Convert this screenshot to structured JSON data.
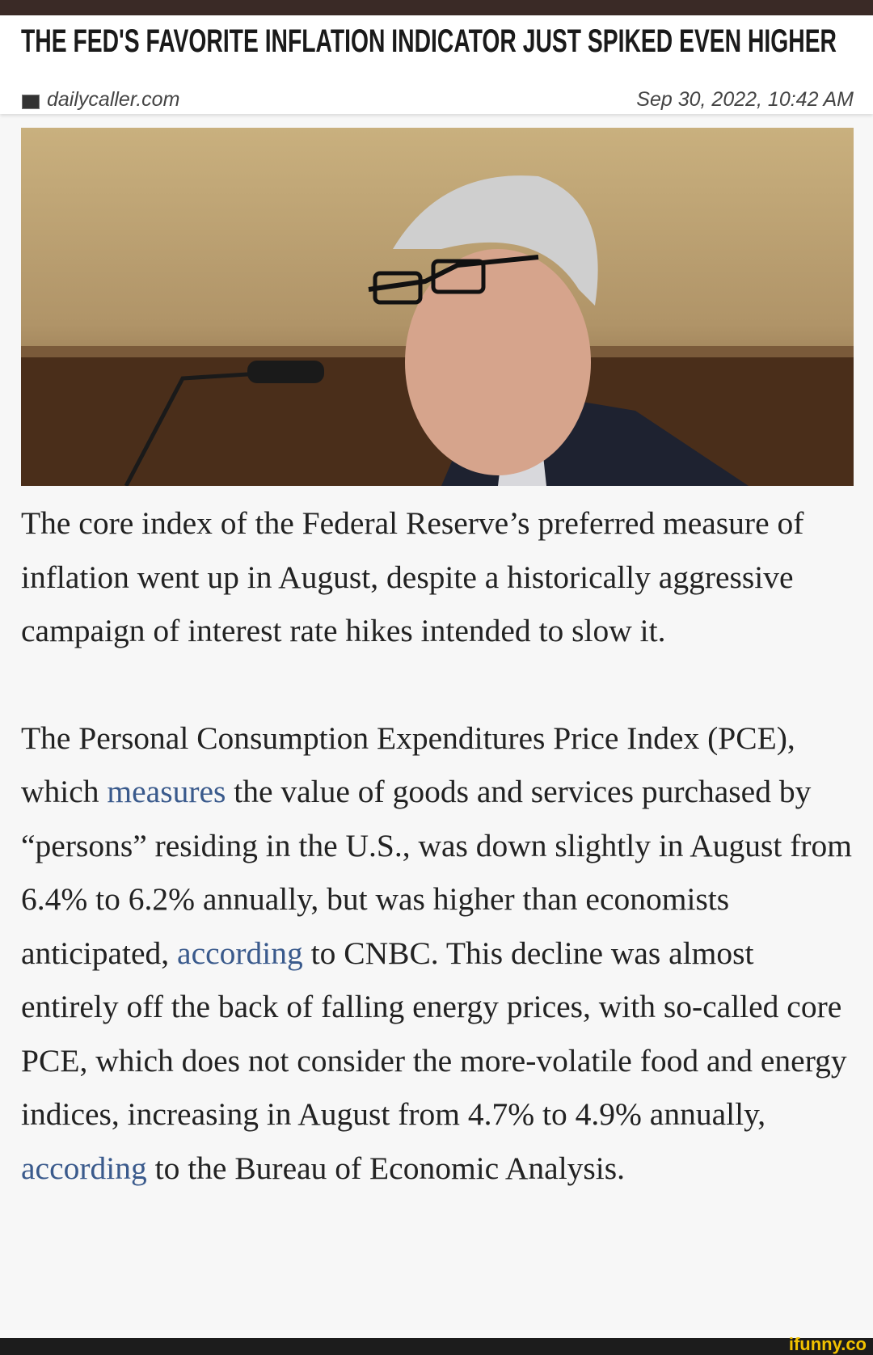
{
  "header": {
    "title": "THE FED'S FAVORITE INFLATION INDICATOR JUST SPIKED EVEN HIGHER",
    "source": "dailycaller.com",
    "date": "Sep 30, 2022, 10:42 AM"
  },
  "article": {
    "paragraphs": [
      [
        {
          "text": "The core index of the Federal Reserve’s preferred measure of inflation went up in August, despite a historically aggressive campaign of interest rate hikes intended to slow it."
        }
      ],
      [
        {
          "text": "The Personal Consumption Expenditures Price Index (PCE), which "
        },
        {
          "text": "measures",
          "link": true
        },
        {
          "text": " the value of goods and services purchased by “persons” residing in the U.S., was down slightly in August from 6.4% to 6.2% annually, but was higher than economists anticipated, "
        },
        {
          "text": "according",
          "link": true
        },
        {
          "text": " to CNBC. This decline was almost entirely off the back of falling energy prices, with so-called core PCE, which does not consider the more-volatile food and energy indices, increasing in August from 4.7% to 4.9% annually, "
        },
        {
          "text": "according",
          "link": true
        },
        {
          "text": " to the Bureau of Economic Analysis."
        }
      ]
    ]
  },
  "watermark": "ifunny.co"
}
